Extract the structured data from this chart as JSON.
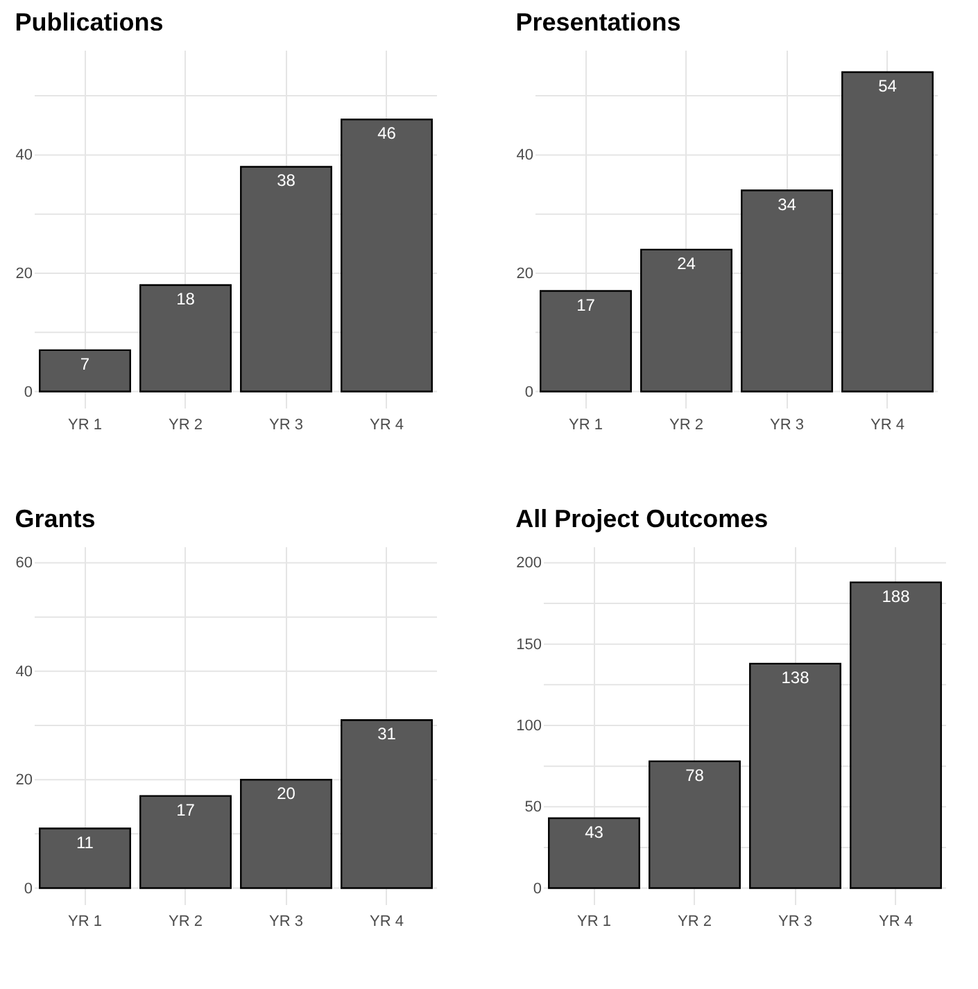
{
  "chart_data": [
    {
      "type": "bar",
      "title": "Publications",
      "categories": [
        "YR 1",
        "YR 2",
        "YR 3",
        "YR 4"
      ],
      "values": [
        7,
        18,
        38,
        46
      ],
      "color": "#595959",
      "ylim": [
        -2.75,
        57.75
      ],
      "yticks": [
        0,
        {
          "value": 10,
          "label": null
        },
        20,
        {
          "value": 30,
          "label": null
        },
        40,
        {
          "value": 50,
          "label": null
        }
      ],
      "grid": true,
      "data_labels": true
    },
    {
      "type": "bar",
      "title": "Presentations",
      "categories": [
        "YR 1",
        "YR 2",
        "YR 3",
        "YR 4"
      ],
      "values": [
        17,
        24,
        34,
        54
      ],
      "color": "#595959",
      "ylim": [
        -2.75,
        57.75
      ],
      "yticks": [
        0,
        {
          "value": 10,
          "label": null
        },
        20,
        {
          "value": 30,
          "label": null
        },
        40,
        {
          "value": 50,
          "label": null
        }
      ],
      "grid": true,
      "data_labels": true
    },
    {
      "type": "bar",
      "title": "Grants",
      "categories": [
        "YR 1",
        "YR 2",
        "YR 3",
        "YR 4"
      ],
      "values": [
        11,
        17,
        20,
        31
      ],
      "color": "#595959",
      "ylim": [
        -3,
        63
      ],
      "yticks": [
        0,
        {
          "value": 10,
          "label": null
        },
        20,
        {
          "value": 30,
          "label": null
        },
        40,
        {
          "value": 50,
          "label": null
        },
        60
      ],
      "grid": true,
      "data_labels": true
    },
    {
      "type": "bar",
      "title": "All Project Outcomes",
      "categories": [
        "YR 1",
        "YR 2",
        "YR 3",
        "YR 4"
      ],
      "values": [
        43,
        78,
        138,
        188
      ],
      "color": "#595959",
      "ylim": [
        -10,
        210
      ],
      "yticks": [
        0,
        {
          "value": 25,
          "label": null
        },
        50,
        {
          "value": 75,
          "label": null
        },
        100,
        {
          "value": 125,
          "label": null
        },
        150,
        {
          "value": 175,
          "label": null
        },
        200
      ],
      "grid": true,
      "data_labels": true
    }
  ]
}
